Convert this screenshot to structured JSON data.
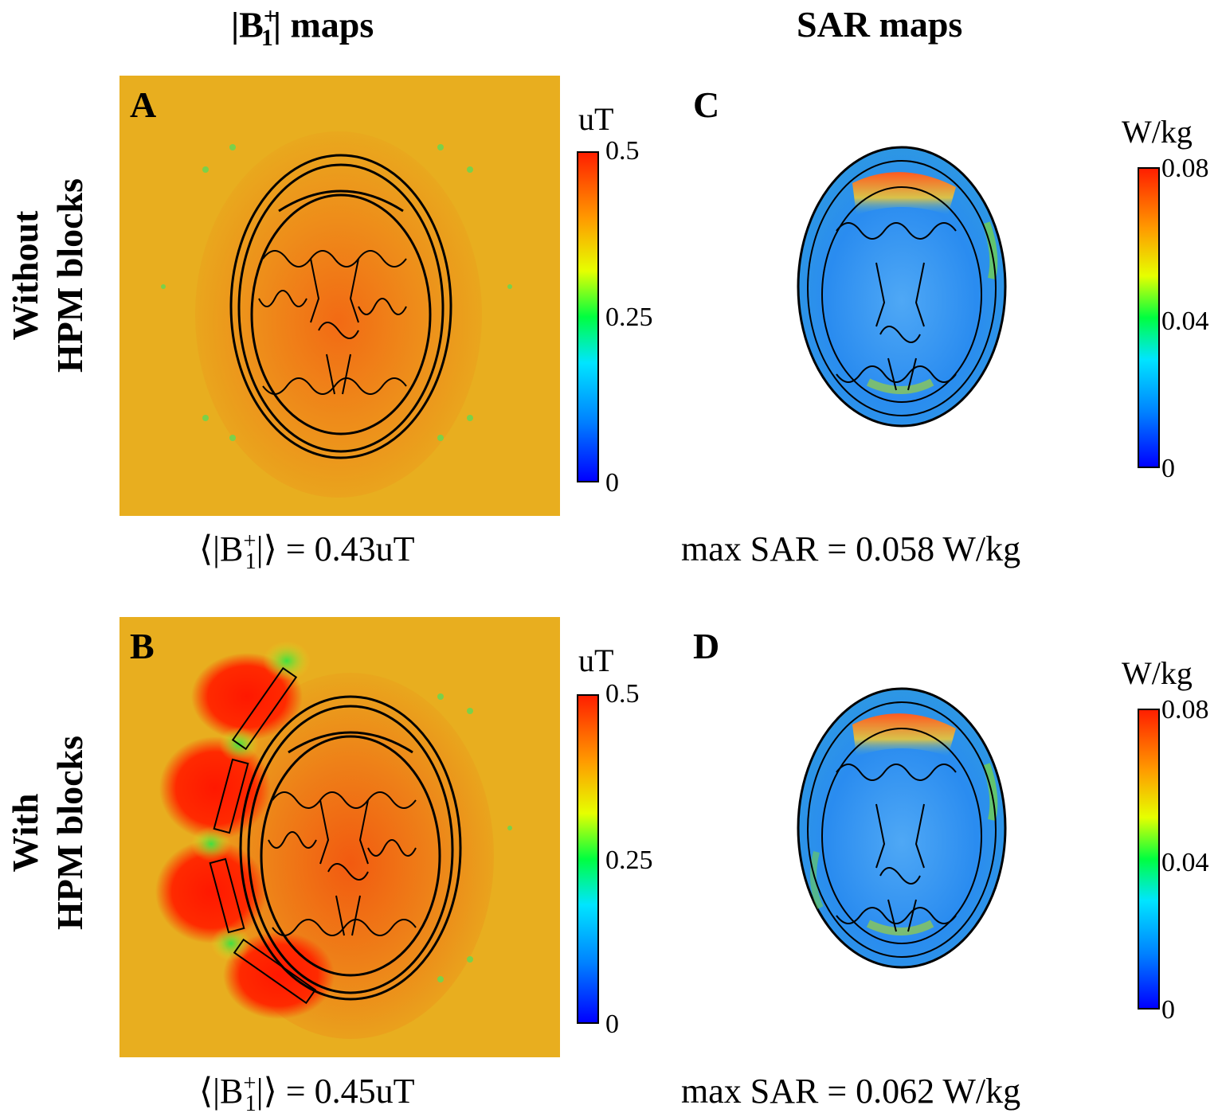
{
  "headers": {
    "b1_title_suffix": "maps",
    "b1_symbol": "B",
    "b1_sub": "1",
    "b1_sup": "+",
    "sar_title": "SAR maps"
  },
  "rows": [
    {
      "line1": "Without",
      "line2": "HPM blocks"
    },
    {
      "line1": "With",
      "line2": "HPM blocks"
    }
  ],
  "panels": {
    "A": {
      "letter": "A",
      "unit": "uT",
      "ticks": [
        "0.5",
        "0.25",
        "0"
      ],
      "caption_value": "= 0.43uT"
    },
    "B": {
      "letter": "B",
      "unit": "uT",
      "ticks": [
        "0.5",
        "0.25",
        "0"
      ],
      "caption_value": "= 0.45uT"
    },
    "C": {
      "letter": "C",
      "unit": "W/kg",
      "ticks": [
        "0.08",
        "0.04",
        "0"
      ],
      "caption": "max SAR = 0.058 W/kg"
    },
    "D": {
      "letter": "D",
      "unit": "W/kg",
      "ticks": [
        "0.08",
        "0.04",
        "0"
      ],
      "caption": "max SAR = 0.062 W/kg"
    }
  },
  "colors": {
    "field_background": "#e9ac1e",
    "hotspot": "#ff1800",
    "sar_low": "#2a8cf0",
    "sar_high": "#ff5a20"
  }
}
